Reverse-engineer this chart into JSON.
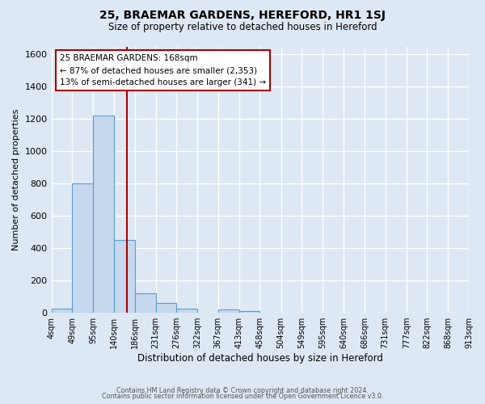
{
  "title": "25, BRAEMAR GARDENS, HEREFORD, HR1 1SJ",
  "subtitle": "Size of property relative to detached houses in Hereford",
  "xlabel": "Distribution of detached houses by size in Hereford",
  "ylabel": "Number of detached properties",
  "bin_edges": [
    4,
    49,
    95,
    140,
    186,
    231,
    276,
    322,
    367,
    413,
    458,
    504,
    549,
    595,
    640,
    686,
    731,
    777,
    822,
    868,
    913
  ],
  "bin_counts": [
    25,
    800,
    1220,
    450,
    120,
    58,
    25,
    0,
    20,
    10,
    0,
    0,
    0,
    0,
    0,
    0,
    0,
    0,
    0,
    0
  ],
  "bar_color": "#c5d8ee",
  "bar_edge_color": "#5b9bd5",
  "highlight_x": 168,
  "highlight_line_color": "#aa0000",
  "annotation_title": "25 BRAEMAR GARDENS: 168sqm",
  "annotation_line1": "← 87% of detached houses are smaller (2,353)",
  "annotation_line2": "13% of semi-detached houses are larger (341) →",
  "annotation_box_color": "#ffffff",
  "annotation_box_edge": "#aa0000",
  "ylim": [
    0,
    1650
  ],
  "xlim": [
    4,
    913
  ],
  "background_color": "#dde8f4",
  "grid_color": "#ffffff",
  "footer1": "Contains HM Land Registry data © Crown copyright and database right 2024.",
  "footer2": "Contains public sector information licensed under the Open Government Licence v3.0."
}
